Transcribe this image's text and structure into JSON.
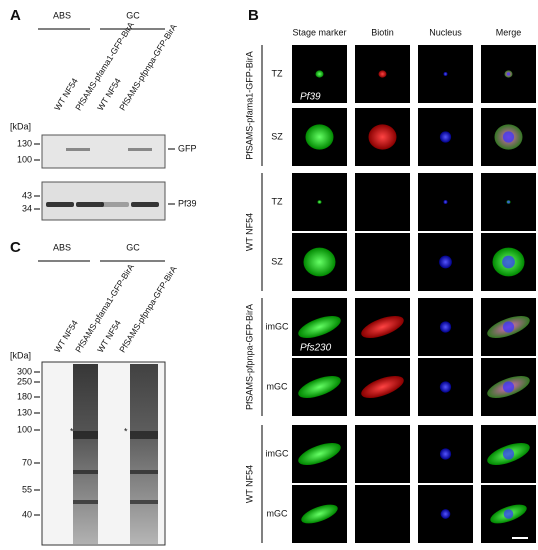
{
  "panel_a": {
    "label": "A",
    "groups": [
      "ABS",
      "GC"
    ],
    "lanes": [
      "WT NF54",
      "PfSAMS-pfama1-GFP-BirA",
      "WT NF54",
      "PfSAMS-pfpnpa-GFP-BirA"
    ],
    "unit": "[kDa]",
    "markers_top": [
      130,
      100
    ],
    "markers_bottom": [
      43,
      34
    ],
    "bands": [
      "GFP",
      "Pf39"
    ]
  },
  "panel_b": {
    "label": "B",
    "columns": [
      "Stage marker",
      "Biotin",
      "Nucleus",
      "Merge"
    ],
    "groups": [
      {
        "name": "PfSAMS-pfama1-GFP-BirA",
        "rows": [
          "TZ",
          "SZ"
        ]
      },
      {
        "name": "WT NF54",
        "rows": [
          "TZ",
          "SZ"
        ]
      },
      {
        "name": "PfSAMS-pfpnpa-GFP-BirA",
        "rows": [
          "imGC",
          "mGC"
        ]
      },
      {
        "name": "WT NF54",
        "rows": [
          "imGC",
          "mGC"
        ]
      }
    ],
    "annotations": [
      "Pf39",
      "Pfs230"
    ]
  },
  "panel_c": {
    "label": "C",
    "groups": [
      "ABS",
      "GC"
    ],
    "lanes": [
      "WT NF54",
      "PfSAMS-pfama1-GFP-BirA",
      "WT NF54",
      "PfSAMS-pfpnpa-GFP-BirA"
    ],
    "unit": "[kDa]",
    "markers": [
      300,
      250,
      180,
      130,
      100,
      70,
      55,
      40
    ],
    "asterisks": [
      "*",
      "*"
    ]
  }
}
